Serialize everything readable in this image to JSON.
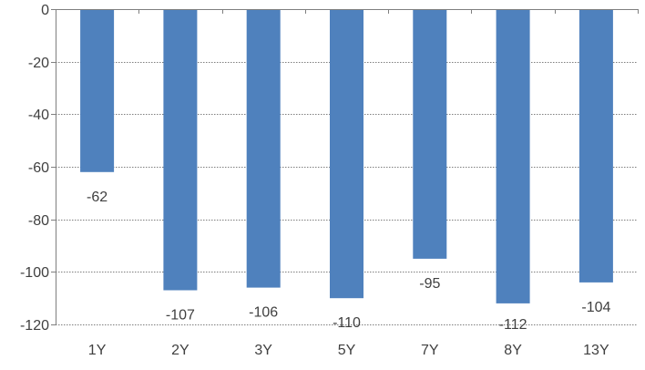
{
  "chart_data": {
    "type": "bar",
    "title": "",
    "xlabel": "",
    "ylabel": "",
    "categories": [
      "1Y",
      "2Y",
      "3Y",
      "5Y",
      "7Y",
      "8Y",
      "13Y"
    ],
    "values": [
      -62,
      -107,
      -106,
      -110,
      -95,
      -112,
      -104
    ],
    "data_labels": [
      "-62",
      "-107",
      "-106",
      "-110",
      "-95",
      "-112",
      "-104"
    ],
    "ylim": [
      -120,
      0
    ],
    "yticks": [
      0,
      -20,
      -40,
      -60,
      -80,
      -100,
      -120
    ],
    "ytick_labels": [
      "0",
      "-20",
      "-40",
      "-60",
      "-80",
      "-100",
      "-120"
    ],
    "grid": true,
    "legend": "none",
    "colors": {
      "bar": "#4F81BD",
      "grid": "#7f7f7f",
      "axis": "#7f7f7f",
      "text": "#404040"
    }
  }
}
